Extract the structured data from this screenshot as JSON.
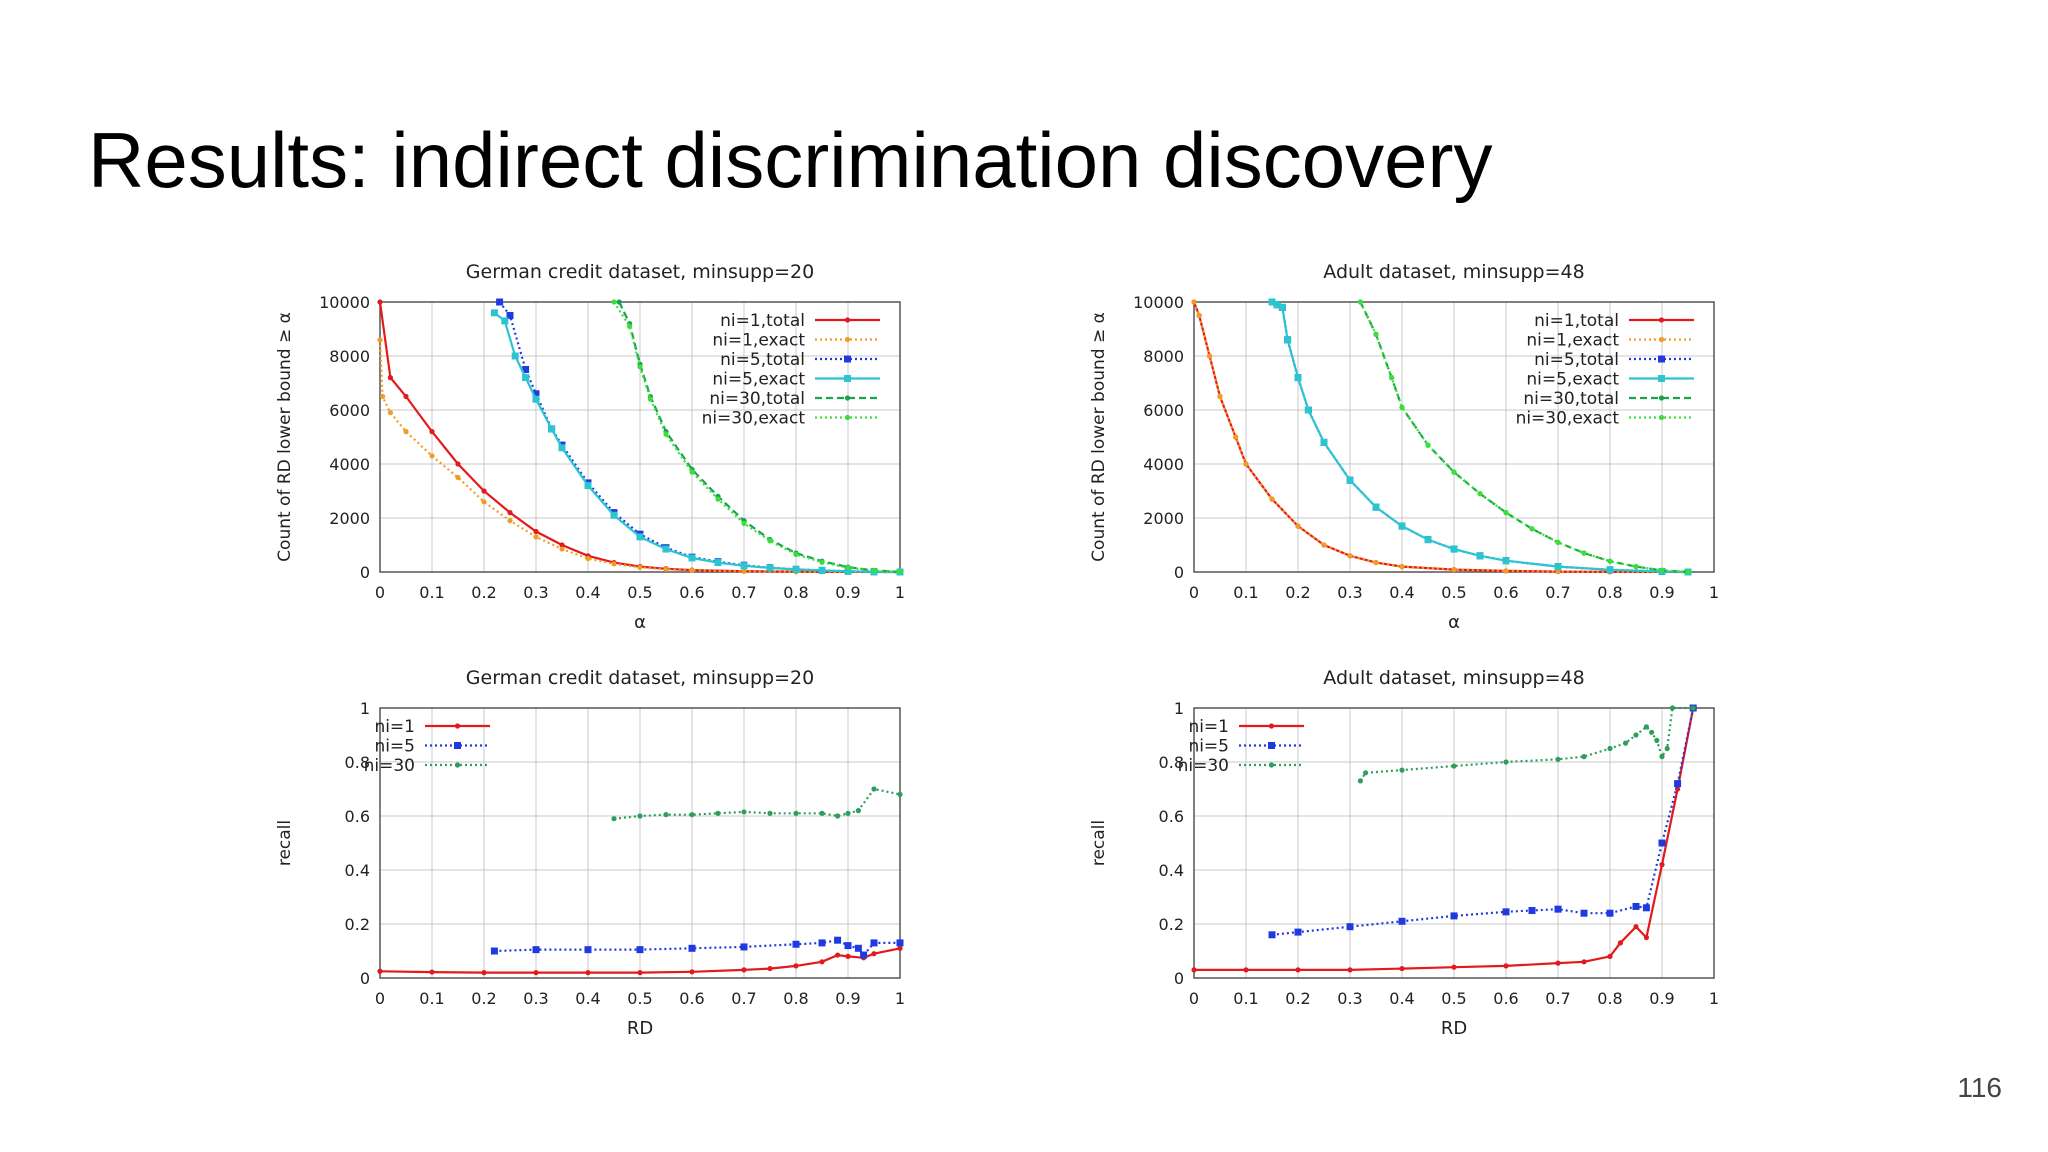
{
  "slide": {
    "title": "Results: indirect discrimination discovery",
    "page_number": "116"
  },
  "chart_data": [
    {
      "type": "line",
      "title": "German credit dataset, minsupp=20",
      "xlabel": "α",
      "ylabel": "Count of RD lower bound ≥ α",
      "xlim": [
        0,
        1
      ],
      "ylim": [
        0,
        10000
      ],
      "x_ticks": [
        "0",
        "0.1",
        "0.2",
        "0.3",
        "0.4",
        "0.5",
        "0.6",
        "0.7",
        "0.8",
        "0.9",
        "1"
      ],
      "y_ticks": [
        "0",
        "2000",
        "4000",
        "6000",
        "8000",
        "10000"
      ],
      "grid": true,
      "legend_position": "top-right",
      "series": [
        {
          "name": "ni=1,total",
          "color": "#e31a1c",
          "dash": "solid",
          "marker": "dot",
          "x": [
            0,
            0.02,
            0.05,
            0.1,
            0.15,
            0.2,
            0.25,
            0.3,
            0.35,
            0.4,
            0.45,
            0.5,
            0.55,
            0.6,
            0.7,
            0.8,
            0.9,
            1.0
          ],
          "y": [
            10000,
            7200,
            6500,
            5200,
            4000,
            3000,
            2200,
            1500,
            1000,
            600,
            350,
            200,
            120,
            70,
            30,
            15,
            5,
            0
          ]
        },
        {
          "name": "ni=1,exact",
          "color": "#f39c23",
          "dash": "dotted",
          "marker": "dot",
          "x": [
            0,
            0.005,
            0.02,
            0.05,
            0.1,
            0.15,
            0.2,
            0.25,
            0.3,
            0.35,
            0.4,
            0.45,
            0.5,
            0.55,
            0.6,
            0.7,
            0.8,
            0.9,
            1.0
          ],
          "y": [
            8600,
            6500,
            5900,
            5200,
            4300,
            3500,
            2600,
            1900,
            1300,
            850,
            500,
            300,
            170,
            100,
            60,
            25,
            10,
            3,
            0
          ]
        },
        {
          "name": "ni=5,total",
          "color": "#1f3ae0",
          "dash": "dotted",
          "marker": "square",
          "x": [
            0.23,
            0.25,
            0.28,
            0.3,
            0.33,
            0.35,
            0.4,
            0.45,
            0.5,
            0.55,
            0.6,
            0.65,
            0.7,
            0.75,
            0.8,
            0.85,
            0.9,
            0.95,
            1.0
          ],
          "y": [
            10000,
            9500,
            7500,
            6600,
            5300,
            4700,
            3300,
            2200,
            1400,
            900,
            550,
            380,
            250,
            160,
            100,
            60,
            30,
            10,
            0
          ]
        },
        {
          "name": "ni=5,exact",
          "color": "#2bc4cf",
          "dash": "solid",
          "marker": "square",
          "x": [
            0.22,
            0.24,
            0.26,
            0.28,
            0.3,
            0.33,
            0.35,
            0.4,
            0.45,
            0.5,
            0.55,
            0.6,
            0.65,
            0.7,
            0.75,
            0.8,
            0.85,
            0.9,
            0.95,
            1.0
          ],
          "y": [
            9600,
            9300,
            8000,
            7200,
            6400,
            5300,
            4600,
            3200,
            2100,
            1300,
            850,
            520,
            350,
            230,
            150,
            95,
            55,
            25,
            8,
            0
          ]
        },
        {
          "name": "ni=30,total",
          "color": "#1aa34a",
          "dash": "dashed",
          "marker": "dot",
          "x": [
            0.46,
            0.48,
            0.5,
            0.52,
            0.55,
            0.6,
            0.65,
            0.7,
            0.75,
            0.8,
            0.85,
            0.9,
            0.95,
            1.0
          ],
          "y": [
            10000,
            9200,
            7700,
            6500,
            5200,
            3800,
            2800,
            1900,
            1200,
            700,
            400,
            180,
            60,
            0
          ]
        },
        {
          "name": "ni=30,exact",
          "color": "#39e03a",
          "dash": "dotted",
          "marker": "dot",
          "x": [
            0.45,
            0.48,
            0.5,
            0.52,
            0.55,
            0.6,
            0.65,
            0.7,
            0.75,
            0.8,
            0.85,
            0.9,
            0.95,
            1.0
          ],
          "y": [
            10000,
            9100,
            7600,
            6400,
            5100,
            3700,
            2700,
            1800,
            1150,
            650,
            360,
            160,
            50,
            0
          ]
        }
      ]
    },
    {
      "type": "line",
      "title": "Adult dataset, minsupp=48",
      "xlabel": "α",
      "ylabel": "Count of RD lower bound ≥ α",
      "xlim": [
        0,
        1
      ],
      "ylim": [
        0,
        10000
      ],
      "x_ticks": [
        "0",
        "0.1",
        "0.2",
        "0.3",
        "0.4",
        "0.5",
        "0.6",
        "0.7",
        "0.8",
        "0.9",
        "1"
      ],
      "y_ticks": [
        "0",
        "2000",
        "4000",
        "6000",
        "8000",
        "10000"
      ],
      "grid": true,
      "legend_position": "top-right",
      "series": [
        {
          "name": "ni=1,total",
          "color": "#e31a1c",
          "dash": "solid",
          "marker": "dot",
          "x": [
            0,
            0.01,
            0.03,
            0.05,
            0.08,
            0.1,
            0.15,
            0.2,
            0.25,
            0.3,
            0.35,
            0.4,
            0.5,
            0.6,
            0.7,
            0.8,
            0.9,
            0.95
          ],
          "y": [
            10000,
            9500,
            8000,
            6500,
            5000,
            4000,
            2700,
            1700,
            1000,
            600,
            350,
            200,
            90,
            40,
            15,
            5,
            2,
            0
          ]
        },
        {
          "name": "ni=1,exact",
          "color": "#f39c23",
          "dash": "dotted",
          "marker": "dot",
          "x": [
            0,
            0.01,
            0.03,
            0.05,
            0.08,
            0.1,
            0.15,
            0.2,
            0.25,
            0.3,
            0.35,
            0.4,
            0.5,
            0.6,
            0.7,
            0.8,
            0.9,
            0.95
          ],
          "y": [
            10000,
            9500,
            8000,
            6500,
            5000,
            4000,
            2700,
            1700,
            1000,
            600,
            350,
            200,
            90,
            40,
            15,
            5,
            2,
            0
          ]
        },
        {
          "name": "ni=5,total",
          "color": "#1f3ae0",
          "dash": "dotted",
          "marker": "square",
          "x": [
            0.15,
            0.16,
            0.17,
            0.18,
            0.2,
            0.22,
            0.25,
            0.3,
            0.35,
            0.4,
            0.45,
            0.5,
            0.55,
            0.6,
            0.7,
            0.8,
            0.9,
            0.95
          ],
          "y": [
            10000,
            9900,
            9800,
            8600,
            7200,
            6000,
            4800,
            3400,
            2400,
            1700,
            1200,
            850,
            600,
            420,
            200,
            80,
            20,
            0
          ]
        },
        {
          "name": "ni=5,exact",
          "color": "#2bc4cf",
          "dash": "solid",
          "marker": "square",
          "x": [
            0.15,
            0.16,
            0.17,
            0.18,
            0.2,
            0.22,
            0.25,
            0.3,
            0.35,
            0.4,
            0.45,
            0.5,
            0.55,
            0.6,
            0.7,
            0.8,
            0.9,
            0.95
          ],
          "y": [
            10000,
            9900,
            9800,
            8600,
            7200,
            6000,
            4800,
            3400,
            2400,
            1700,
            1200,
            850,
            600,
            420,
            200,
            80,
            20,
            0
          ]
        },
        {
          "name": "ni=30,total",
          "color": "#1aa34a",
          "dash": "dashed",
          "marker": "dot",
          "x": [
            0.32,
            0.35,
            0.38,
            0.4,
            0.45,
            0.5,
            0.55,
            0.6,
            0.65,
            0.7,
            0.75,
            0.8,
            0.85,
            0.9,
            0.95
          ],
          "y": [
            10000,
            8800,
            7200,
            6100,
            4700,
            3700,
            2900,
            2200,
            1600,
            1100,
            700,
            400,
            200,
            60,
            0
          ]
        },
        {
          "name": "ni=30,exact",
          "color": "#39e03a",
          "dash": "dotted",
          "marker": "dot",
          "x": [
            0.32,
            0.35,
            0.38,
            0.4,
            0.45,
            0.5,
            0.55,
            0.6,
            0.65,
            0.7,
            0.75,
            0.8,
            0.85,
            0.9,
            0.95
          ],
          "y": [
            10000,
            8800,
            7200,
            6100,
            4700,
            3700,
            2900,
            2200,
            1600,
            1100,
            700,
            400,
            200,
            60,
            0
          ]
        }
      ]
    },
    {
      "type": "line",
      "title": "German credit dataset, minsupp=20",
      "xlabel": "RD",
      "ylabel": "recall",
      "xlim": [
        0,
        1
      ],
      "ylim": [
        0,
        1
      ],
      "x_ticks": [
        "0",
        "0.1",
        "0.2",
        "0.3",
        "0.4",
        "0.5",
        "0.6",
        "0.7",
        "0.8",
        "0.9",
        "1"
      ],
      "y_ticks": [
        "0",
        "0.2",
        "0.4",
        "0.6",
        "0.8",
        "1"
      ],
      "grid": true,
      "legend_position": "top-left",
      "series": [
        {
          "name": "ni=1",
          "color": "#e31a1c",
          "dash": "solid",
          "marker": "dot",
          "x": [
            0,
            0.1,
            0.2,
            0.3,
            0.4,
            0.5,
            0.6,
            0.7,
            0.75,
            0.8,
            0.85,
            0.88,
            0.9,
            0.93,
            0.95,
            1.0
          ],
          "y": [
            0.025,
            0.022,
            0.02,
            0.02,
            0.02,
            0.02,
            0.023,
            0.03,
            0.035,
            0.045,
            0.06,
            0.085,
            0.08,
            0.075,
            0.09,
            0.11
          ]
        },
        {
          "name": "ni=5",
          "color": "#1f3ae0",
          "dash": "dotted",
          "marker": "square",
          "x": [
            0.22,
            0.3,
            0.4,
            0.5,
            0.6,
            0.7,
            0.8,
            0.85,
            0.88,
            0.9,
            0.92,
            0.93,
            0.95,
            1.0
          ],
          "y": [
            0.1,
            0.105,
            0.105,
            0.105,
            0.11,
            0.115,
            0.125,
            0.13,
            0.14,
            0.12,
            0.11,
            0.085,
            0.13,
            0.13
          ]
        },
        {
          "name": "ni=30",
          "color": "#2e9e5b",
          "dash": "dotted",
          "marker": "dot",
          "x": [
            0.45,
            0.5,
            0.55,
            0.6,
            0.65,
            0.7,
            0.75,
            0.8,
            0.85,
            0.88,
            0.9,
            0.92,
            0.95,
            1.0
          ],
          "y": [
            0.59,
            0.6,
            0.605,
            0.605,
            0.61,
            0.615,
            0.61,
            0.61,
            0.61,
            0.6,
            0.61,
            0.62,
            0.7,
            0.68
          ]
        }
      ]
    },
    {
      "type": "line",
      "title": "Adult dataset, minsupp=48",
      "xlabel": "RD",
      "ylabel": "recall",
      "xlim": [
        0,
        1
      ],
      "ylim": [
        0,
        1
      ],
      "x_ticks": [
        "0",
        "0.1",
        "0.2",
        "0.3",
        "0.4",
        "0.5",
        "0.6",
        "0.7",
        "0.8",
        "0.9",
        "1"
      ],
      "y_ticks": [
        "0",
        "0.2",
        "0.4",
        "0.6",
        "0.8",
        "1"
      ],
      "grid": true,
      "legend_position": "top-left",
      "series": [
        {
          "name": "ni=1",
          "color": "#e31a1c",
          "dash": "solid",
          "marker": "dot",
          "x": [
            0,
            0.1,
            0.2,
            0.3,
            0.4,
            0.5,
            0.6,
            0.7,
            0.75,
            0.8,
            0.82,
            0.85,
            0.87,
            0.9,
            0.93,
            0.96
          ],
          "y": [
            0.03,
            0.03,
            0.03,
            0.03,
            0.035,
            0.04,
            0.045,
            0.055,
            0.06,
            0.08,
            0.13,
            0.19,
            0.15,
            0.42,
            0.7,
            1.0
          ]
        },
        {
          "name": "ni=5",
          "color": "#1f3ae0",
          "dash": "dotted",
          "marker": "square",
          "x": [
            0.15,
            0.2,
            0.3,
            0.4,
            0.5,
            0.6,
            0.65,
            0.7,
            0.75,
            0.8,
            0.85,
            0.87,
            0.9,
            0.93,
            0.96
          ],
          "y": [
            0.16,
            0.17,
            0.19,
            0.21,
            0.23,
            0.245,
            0.25,
            0.255,
            0.24,
            0.24,
            0.265,
            0.26,
            0.5,
            0.72,
            1.0
          ]
        },
        {
          "name": "ni=30",
          "color": "#2e9e5b",
          "dash": "dotted",
          "marker": "dot",
          "x": [
            0.32,
            0.33,
            0.4,
            0.5,
            0.6,
            0.7,
            0.75,
            0.8,
            0.83,
            0.85,
            0.87,
            0.88,
            0.89,
            0.9,
            0.91,
            0.92,
            0.96
          ],
          "y": [
            0.73,
            0.76,
            0.77,
            0.785,
            0.8,
            0.81,
            0.82,
            0.85,
            0.87,
            0.9,
            0.93,
            0.91,
            0.88,
            0.82,
            0.85,
            1.0,
            1.0
          ]
        }
      ]
    }
  ]
}
